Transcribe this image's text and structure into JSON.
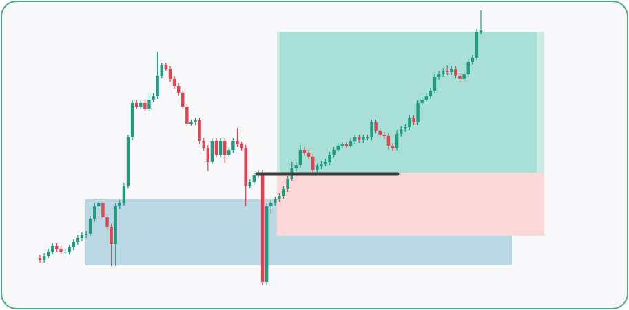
{
  "chart_data": {
    "type": "candlestick",
    "ylim": [
      0,
      451
    ],
    "up_color": "#1e9c80",
    "down_color": "#e7404f",
    "open": [
      76,
      73,
      79,
      85,
      93,
      89,
      85,
      85,
      91,
      99,
      105,
      109,
      111,
      133,
      151,
      155,
      135,
      121,
      96,
      151,
      156,
      181,
      251,
      301,
      296,
      301,
      293,
      306,
      311,
      341,
      356,
      351,
      336,
      326,
      316,
      296,
      271,
      273,
      276,
      246,
      236,
      216,
      246,
      226,
      246,
      226,
      233,
      246,
      241,
      236,
      181,
      186,
      196,
      199,
      41,
      151,
      156,
      161,
      166,
      176,
      191,
      206,
      211,
      233,
      229,
      223,
      203,
      209,
      213,
      215,
      226,
      233,
      239,
      241,
      239,
      246,
      251,
      247,
      251,
      251,
      273,
      261,
      255,
      253,
      239,
      236,
      256,
      263,
      266,
      279,
      273,
      301,
      306,
      311,
      319,
      339,
      343,
      348,
      346,
      351,
      341,
      336,
      343,
      361,
      367,
      405
    ],
    "high": [
      80,
      83,
      89,
      97,
      97,
      93,
      89,
      95,
      103,
      109,
      113,
      115,
      137,
      155,
      159,
      159,
      139,
      125,
      155,
      160,
      185,
      255,
      305,
      305,
      305,
      305,
      316,
      315,
      376,
      360,
      360,
      355,
      340,
      330,
      320,
      300,
      277,
      280,
      280,
      250,
      240,
      250,
      250,
      250,
      250,
      237,
      250,
      265,
      245,
      240,
      190,
      200,
      203,
      203,
      155,
      160,
      165,
      170,
      180,
      195,
      216,
      215,
      240,
      237,
      233,
      227,
      213,
      217,
      219,
      230,
      237,
      243,
      245,
      245,
      250,
      255,
      255,
      255,
      255,
      277,
      277,
      265,
      259,
      257,
      243,
      262,
      267,
      270,
      283,
      283,
      305,
      310,
      315,
      323,
      343,
      347,
      352,
      356,
      355,
      355,
      345,
      347,
      365,
      371,
      409,
      436
    ],
    "low": [
      69,
      69,
      75,
      81,
      85,
      81,
      81,
      81,
      87,
      95,
      101,
      105,
      107,
      129,
      147,
      131,
      117,
      64,
      64,
      147,
      152,
      177,
      247,
      292,
      292,
      289,
      289,
      302,
      307,
      337,
      347,
      332,
      322,
      312,
      292,
      267,
      267,
      269,
      242,
      232,
      202,
      212,
      222,
      222,
      214,
      222,
      229,
      237,
      232,
      151,
      177,
      182,
      192,
      36,
      36,
      140,
      152,
      157,
      162,
      172,
      187,
      202,
      207,
      225,
      219,
      199,
      199,
      205,
      209,
      211,
      222,
      229,
      235,
      235,
      235,
      242,
      243,
      243,
      247,
      247,
      257,
      251,
      249,
      233,
      232,
      232,
      252,
      259,
      262,
      269,
      269,
      297,
      302,
      307,
      315,
      335,
      339,
      342,
      342,
      337,
      332,
      332,
      339,
      357,
      363,
      401
    ],
    "close": [
      73,
      79,
      85,
      93,
      89,
      85,
      85,
      91,
      99,
      105,
      109,
      111,
      133,
      151,
      155,
      135,
      121,
      96,
      151,
      156,
      181,
      251,
      301,
      296,
      301,
      293,
      306,
      311,
      341,
      356,
      351,
      336,
      326,
      316,
      296,
      271,
      273,
      276,
      246,
      236,
      216,
      246,
      226,
      246,
      226,
      233,
      246,
      241,
      236,
      181,
      186,
      196,
      199,
      41,
      151,
      156,
      161,
      166,
      176,
      191,
      206,
      211,
      233,
      229,
      223,
      203,
      209,
      213,
      215,
      226,
      233,
      239,
      241,
      239,
      246,
      251,
      247,
      251,
      251,
      273,
      261,
      255,
      253,
      239,
      236,
      256,
      263,
      266,
      279,
      273,
      301,
      306,
      311,
      319,
      339,
      343,
      348,
      346,
      351,
      341,
      336,
      343,
      361,
      367,
      405,
      408
    ]
  }
}
